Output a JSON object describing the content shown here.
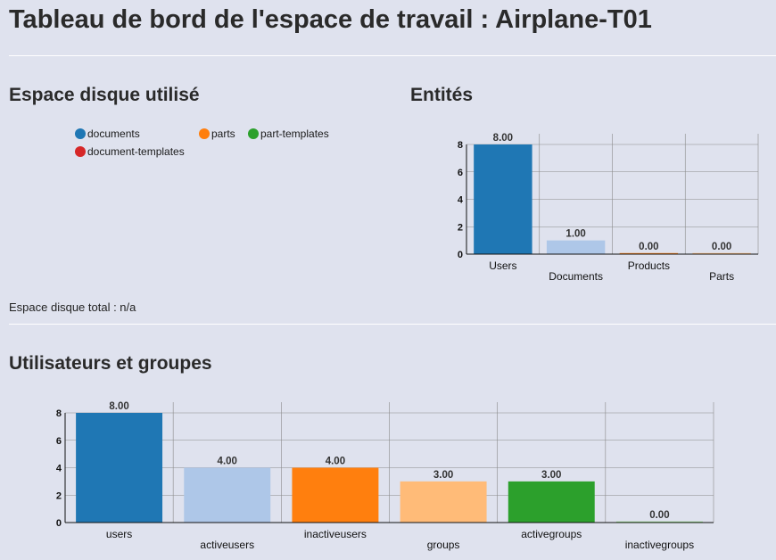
{
  "page": {
    "title": "Tableau de bord de l'espace de travail : Airplane-T01"
  },
  "disk_usage": {
    "title": "Espace disque utilisé",
    "legend": [
      {
        "label": "documents",
        "color": "#1f77b4"
      },
      {
        "label": "parts",
        "color": "#ff7f0e"
      },
      {
        "label": "part-templates",
        "color": "#2ca02c"
      },
      {
        "label": "document-templates",
        "color": "#d62728"
      }
    ],
    "total_label": "Espace disque total : n/a"
  },
  "entities": {
    "title": "Entités"
  },
  "users_groups": {
    "title": "Utilisateurs et groupes"
  },
  "chart_data": [
    {
      "type": "bar",
      "categories": [
        "Users",
        "Documents",
        "Products",
        "Parts"
      ],
      "values": [
        8.0,
        1.0,
        0.0,
        0.0
      ],
      "value_labels": [
        "8.00",
        "1.00",
        "0.00",
        "0.00"
      ],
      "colors": [
        "#1f77b4",
        "#aec7e8",
        "#ff7f0e",
        "#ffbb78"
      ],
      "yticks": [
        "0",
        "2",
        "4",
        "6",
        "8"
      ],
      "ylim": [
        0,
        8
      ],
      "grid": true,
      "title": "",
      "xlabel": "",
      "ylabel": ""
    },
    {
      "type": "bar",
      "categories": [
        "users",
        "activeusers",
        "inactiveusers",
        "groups",
        "activegroups",
        "inactivegroups"
      ],
      "values": [
        8.0,
        4.0,
        4.0,
        3.0,
        3.0,
        0.0
      ],
      "value_labels": [
        "8.00",
        "4.00",
        "4.00",
        "3.00",
        "3.00",
        "0.00"
      ],
      "colors": [
        "#1f77b4",
        "#aec7e8",
        "#ff7f0e",
        "#ffbb78",
        "#2ca02c",
        "#98df8a"
      ],
      "yticks": [
        "0",
        "2",
        "4",
        "6",
        "8"
      ],
      "ylim": [
        0,
        8
      ],
      "grid": true,
      "title": "",
      "xlabel": "",
      "ylabel": ""
    }
  ]
}
